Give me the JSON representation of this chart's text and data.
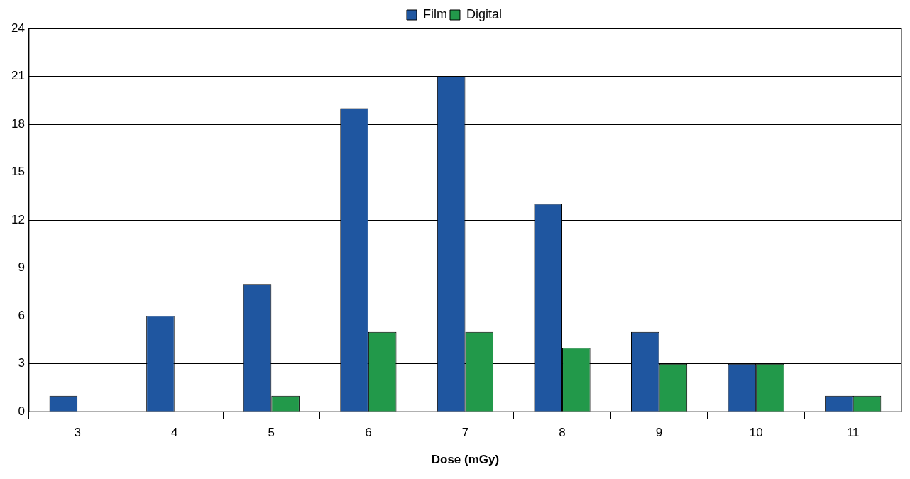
{
  "chart_data": {
    "type": "bar",
    "xlabel": "Dose (mGy)",
    "categories": [
      "3",
      "4",
      "5",
      "6",
      "7",
      "8",
      "9",
      "10",
      "11"
    ],
    "series": [
      {
        "name": "Film",
        "color": "#1f56a0",
        "values": [
          1,
          6,
          8,
          19,
          21,
          13,
          5,
          3,
          1
        ]
      },
      {
        "name": "Digital",
        "color": "#22994a",
        "values": [
          0,
          0,
          1,
          5,
          5,
          4,
          3,
          3,
          1
        ]
      }
    ],
    "ylim": [
      0,
      24
    ],
    "yticks": [
      0,
      3,
      6,
      9,
      12,
      15,
      18,
      21,
      24
    ],
    "grid": "y",
    "legend": "top"
  }
}
